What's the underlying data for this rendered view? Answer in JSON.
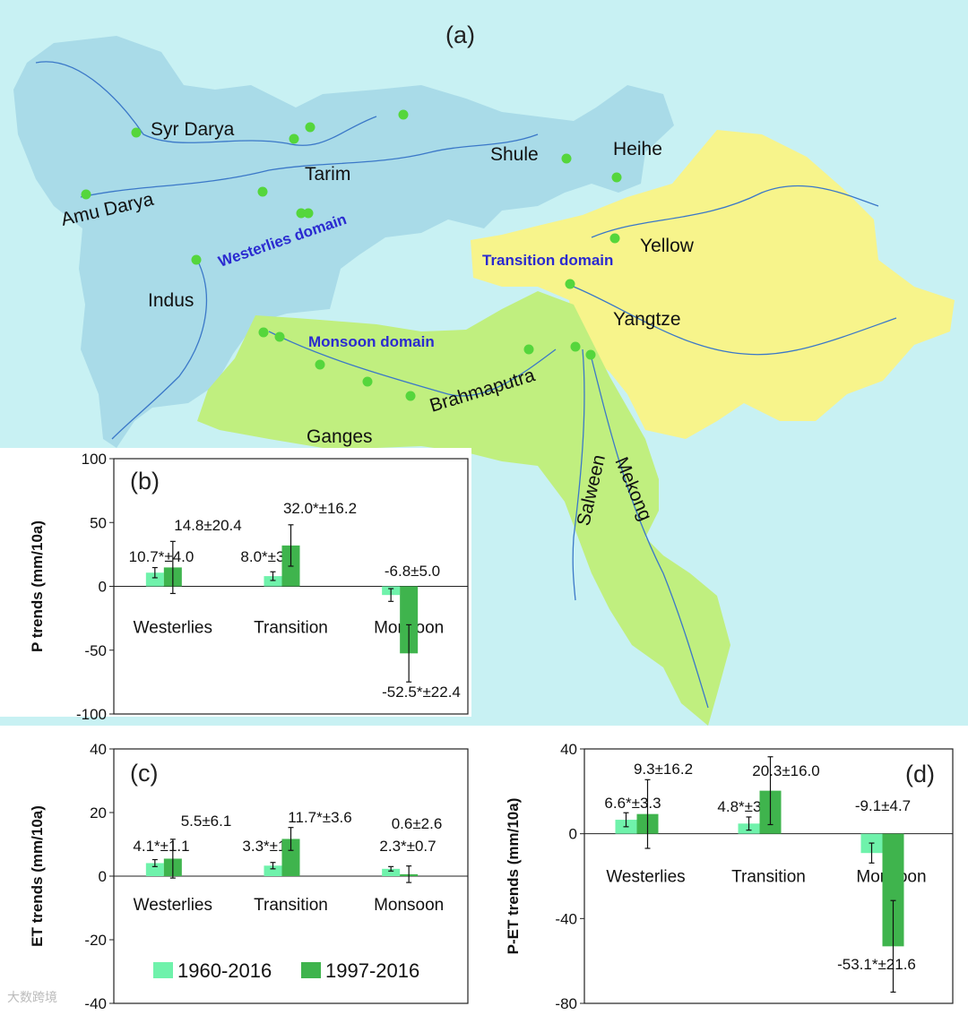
{
  "colors": {
    "sea": "#c8f1f3",
    "westerlies": "#a9dbe8",
    "transition": "#f7f48b",
    "monsoon": "#c0ef7f",
    "river": "#3b78c8",
    "station": "#55d63c",
    "series_1960": "#6ff2ab",
    "series_1997": "#3fb44d"
  },
  "map": {
    "label": "(a)",
    "basins": [
      "Syr Darya",
      "Amu Darya",
      "Tarim",
      "Shule",
      "Heihe",
      "Indus",
      "Yellow",
      "Yangtze",
      "Brahmaputra",
      "Ganges",
      "Salween",
      "Mekong"
    ],
    "domains": [
      "Westerlies domain",
      "Transition domain",
      "Monsoon domain"
    ]
  },
  "chart_data": [
    {
      "type": "bar",
      "label": "(b)",
      "ylabel": "P trends (mm/10a)",
      "ylim": [
        -100,
        100
      ],
      "yticks": [
        "100",
        "50",
        "0",
        "-50",
        "-100"
      ],
      "categories": [
        "Westerlies",
        "Transition",
        "Monsoon"
      ],
      "series": [
        {
          "name": "1960-2016",
          "values": [
            10.7,
            8.0,
            -6.8
          ],
          "errors": [
            4.0,
            3.4,
            5.0
          ],
          "labels": [
            "10.7*±4.0",
            "8.0*±3.4",
            "-6.8±5.0"
          ]
        },
        {
          "name": "1997-2016",
          "values": [
            14.8,
            32.0,
            -52.5
          ],
          "errors": [
            20.4,
            16.2,
            22.4
          ],
          "labels": [
            "14.8±20.4",
            "32.0*±16.2",
            "-52.5*±22.4"
          ]
        }
      ]
    },
    {
      "type": "bar",
      "label": "(c)",
      "ylabel": "ET trends (mm/10a)",
      "ylim": [
        -40,
        40
      ],
      "yticks": [
        "40",
        "20",
        "0",
        "-20",
        "-40"
      ],
      "categories": [
        "Westerlies",
        "Transition",
        "Monsoon"
      ],
      "legend": "bottom",
      "series": [
        {
          "name": "1960-2016",
          "values": [
            4.1,
            3.3,
            2.3
          ],
          "errors": [
            1.1,
            1.0,
            0.7
          ],
          "labels": [
            "4.1*±1.1",
            "3.3*±1.0",
            "2.3*±0.7"
          ]
        },
        {
          "name": "1997-2016",
          "values": [
            5.5,
            11.7,
            0.6
          ],
          "errors": [
            6.1,
            3.6,
            2.6
          ],
          "labels": [
            "5.5±6.1",
            "11.7*±3.6",
            "0.6±2.6"
          ]
        }
      ]
    },
    {
      "type": "bar",
      "label": "(d)",
      "ylabel": "P-ET trends (mm/10a)",
      "ylim": [
        -80,
        40
      ],
      "yticks": [
        "40",
        "0",
        "-40",
        "-80"
      ],
      "categories": [
        "Westerlies",
        "Transition",
        "Monsoon"
      ],
      "series": [
        {
          "name": "1960-2016",
          "values": [
            6.6,
            4.8,
            -9.1
          ],
          "errors": [
            3.3,
            3.1,
            4.7
          ],
          "labels": [
            "6.6*±3.3",
            "4.8*±3.1",
            "-9.1±4.7"
          ]
        },
        {
          "name": "1997-2016",
          "values": [
            9.3,
            20.3,
            -53.1
          ],
          "errors": [
            16.2,
            16.0,
            21.6
          ],
          "labels": [
            "9.3±16.2",
            "20.3±16.0",
            "-53.1*±21.6"
          ]
        }
      ]
    }
  ],
  "watermark": "大数跨境"
}
